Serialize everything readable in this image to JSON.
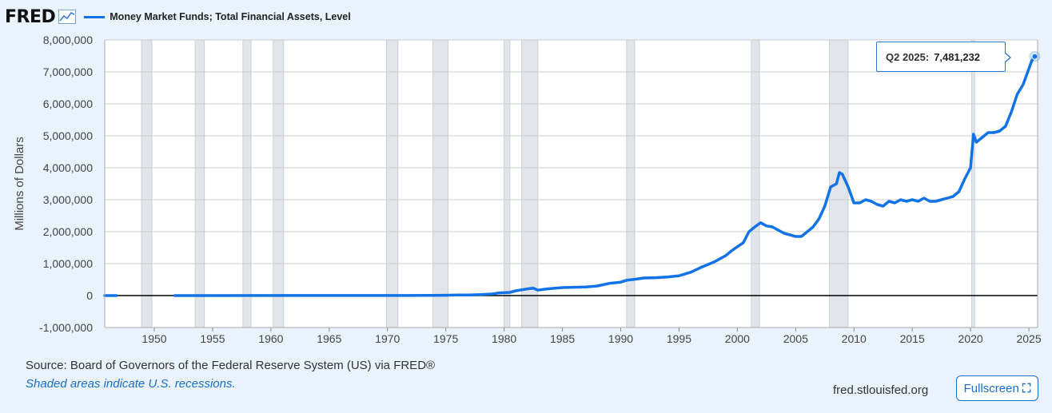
{
  "header": {
    "logo_text": "FRED",
    "series_label": "Money Market Funds; Total Financial Assets, Level",
    "series_color": "#1273e6"
  },
  "tooltip": {
    "date": "Q2 2025:",
    "value": "7,481,232"
  },
  "footer": {
    "source": "Source: Board of Governors of the Federal Reserve System (US) via FRED®",
    "note": "Shaded areas indicate U.S. recessions.",
    "url": "fred.stlouisfed.org",
    "fullscreen_label": "Fullscreen"
  },
  "colors": {
    "line": "#1273e6",
    "recession": "#e1e4e8",
    "plot_bg": "#ffffff",
    "zero_line": "#000000",
    "grid": "#cccccc"
  },
  "chart_data": {
    "type": "line",
    "ylabel": "Millions of Dollars",
    "xlim": [
      1945.75,
      2025.75
    ],
    "ylim": [
      -1000000,
      8000000
    ],
    "grid": true,
    "y_ticks": [
      {
        "value": 8000000,
        "label": "8,000,000"
      },
      {
        "value": 7000000,
        "label": "7,000,000"
      },
      {
        "value": 6000000,
        "label": "6,000,000"
      },
      {
        "value": 5000000,
        "label": "5,000,000"
      },
      {
        "value": 4000000,
        "label": "4,000,000"
      },
      {
        "value": 3000000,
        "label": "3,000,000"
      },
      {
        "value": 2000000,
        "label": "2,000,000"
      },
      {
        "value": 1000000,
        "label": "1,000,000"
      },
      {
        "value": 0,
        "label": "0"
      },
      {
        "value": -1000000,
        "label": "-1,000,000"
      }
    ],
    "x_ticks": [
      {
        "value": 1950,
        "label": "1950"
      },
      {
        "value": 1955,
        "label": "1955"
      },
      {
        "value": 1960,
        "label": "1960"
      },
      {
        "value": 1965,
        "label": "1965"
      },
      {
        "value": 1970,
        "label": "1970"
      },
      {
        "value": 1975,
        "label": "1975"
      },
      {
        "value": 1980,
        "label": "1980"
      },
      {
        "value": 1985,
        "label": "1985"
      },
      {
        "value": 1990,
        "label": "1990"
      },
      {
        "value": 1995,
        "label": "1995"
      },
      {
        "value": 2000,
        "label": "2000"
      },
      {
        "value": 2005,
        "label": "2005"
      },
      {
        "value": 2010,
        "label": "2010"
      },
      {
        "value": 2015,
        "label": "2015"
      },
      {
        "value": 2020,
        "label": "2020"
      },
      {
        "value": 2025,
        "label": "2025"
      }
    ],
    "recessions": [
      [
        1948.9,
        1949.8
      ],
      [
        1953.5,
        1954.3
      ],
      [
        1957.6,
        1958.3
      ],
      [
        1960.2,
        1961.1
      ],
      [
        1969.9,
        1970.9
      ],
      [
        1973.9,
        1975.2
      ],
      [
        1980.0,
        1980.5
      ],
      [
        1981.5,
        1982.9
      ],
      [
        1990.5,
        1991.2
      ],
      [
        2001.2,
        2001.9
      ],
      [
        2007.9,
        2009.5
      ],
      [
        2020.1,
        2020.35
      ]
    ],
    "series": [
      {
        "name": "Money Market Funds; Total Financial Assets, Level",
        "segments": [
          {
            "x": [
              1945.75,
              1946.75
            ],
            "y": [
              0,
              0
            ]
          },
          {
            "x": [
              1951.75,
              1974.0,
              1975.0,
              1976.0,
              1977.0,
              1978.0,
              1979.0,
              1979.5,
              1980.0,
              1980.5,
              1981.0,
              1981.5,
              1982.0,
              1982.5,
              1982.9,
              1983.5,
              1984.0,
              1985.0,
              1986.0,
              1987.0,
              1988.0,
              1989.0,
              1990.0,
              1990.5,
              1991.0,
              1992.0,
              1993.0,
              1994.0,
              1995.0,
              1996.0,
              1997.0,
              1998.0,
              1999.0,
              1999.5,
              2000.0,
              2000.5,
              2001.0,
              2001.5,
              2002.0,
              2002.5,
              2003.0,
              2004.0,
              2005.0,
              2005.5,
              2006.0,
              2006.5,
              2007.0,
              2007.5,
              2008.0,
              2008.5,
              2008.75,
              2009.0,
              2009.5,
              2010.0,
              2010.5,
              2011.0,
              2011.5,
              2012.0,
              2012.5,
              2013.0,
              2013.5,
              2014.0,
              2014.5,
              2015.0,
              2015.5,
              2016.0,
              2016.5,
              2017.0,
              2017.5,
              2018.0,
              2018.5,
              2019.0,
              2019.5,
              2020.0,
              2020.25,
              2020.5,
              2021.0,
              2021.5,
              2022.0,
              2022.5,
              2023.0,
              2023.5,
              2024.0,
              2024.5,
              2025.0,
              2025.25,
              2025.5
            ],
            "y": [
              0,
              5000,
              10000,
              20000,
              20000,
              30000,
              50000,
              80000,
              90000,
              100000,
              150000,
              180000,
              210000,
              230000,
              170000,
              200000,
              220000,
              250000,
              260000,
              270000,
              300000,
              380000,
              420000,
              480000,
              500000,
              550000,
              560000,
              580000,
              620000,
              730000,
              900000,
              1050000,
              1250000,
              1400000,
              1530000,
              1650000,
              2000000,
              2150000,
              2280000,
              2180000,
              2150000,
              1950000,
              1850000,
              1850000,
              2000000,
              2150000,
              2400000,
              2800000,
              3400000,
              3500000,
              3850000,
              3800000,
              3400000,
              2900000,
              2900000,
              3000000,
              2950000,
              2850000,
              2800000,
              2950000,
              2900000,
              3000000,
              2950000,
              3000000,
              2950000,
              3050000,
              2950000,
              2950000,
              3000000,
              3050000,
              3100000,
              3250000,
              3650000,
              4000000,
              5050000,
              4800000,
              4950000,
              5100000,
              5100000,
              5150000,
              5300000,
              5750000,
              6300000,
              6600000,
              7100000,
              7350000,
              7481232
            ]
          }
        ]
      }
    ],
    "highlight": {
      "x": 2025.5,
      "y": 7481232
    }
  }
}
